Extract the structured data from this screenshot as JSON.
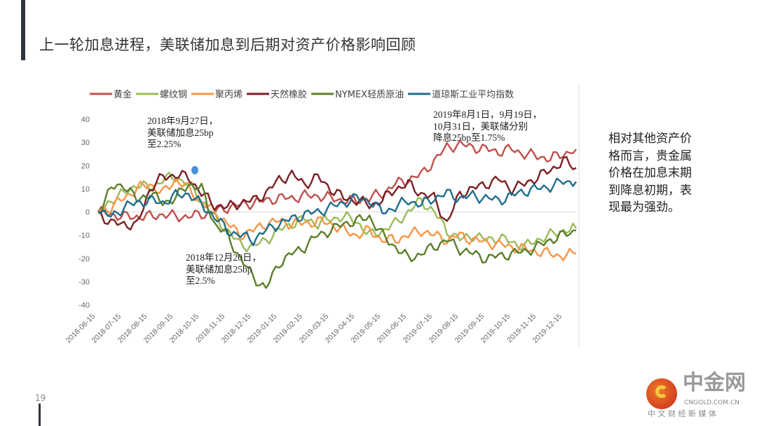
{
  "title": "上一轮加息进程，美联储加息到后期对资产价格影响回顾",
  "side_text": [
    "相对其他资产价",
    "格而言，贵金属",
    "价格在加息末期",
    "到降息初期，表",
    "现最为强劲。"
  ],
  "page_number": "19",
  "logo": {
    "name": "中金网",
    "url": "CNGOLD.COM.CN",
    "tagline": "中 文 财 经 新 媒 体"
  },
  "annotations": [
    {
      "lines": [
        "2018年9月27日，",
        "美联储加息25bp",
        "至2.25%"
      ]
    },
    {
      "lines": [
        "2018年12月20日，",
        "美联储加息25bp",
        "至2.5%"
      ]
    },
    {
      "lines": [
        "2019年8月1日，9月19日，",
        "10月31日，美联储分别",
        "降息25bp至1.75%"
      ]
    }
  ],
  "chart_data": {
    "type": "line",
    "title": "",
    "xlabel": "",
    "ylabel": "",
    "ylim": [
      -40,
      40
    ],
    "yticks": [
      40,
      30,
      20,
      10,
      0,
      -10,
      -20,
      -30,
      -40
    ],
    "xtick_labels": [
      "2018-06-15",
      "2018-07-15",
      "2018-08-15",
      "2018-09-15",
      "2018-10-15",
      "2018-11-15",
      "2018-12-15",
      "2019-01-15",
      "2019-02-15",
      "2019-03-15",
      "2019-04-15",
      "2019-05-15",
      "2019-06-15",
      "2019-07-15",
      "2019-08-15",
      "2019-09-15",
      "2019-10-15",
      "2019-11-15",
      "2019-12-15"
    ],
    "x_note": "semi-monthly samples from 2018-06-15 to 2019-12-31",
    "legend_position": "top",
    "series": [
      {
        "name": "黄金",
        "color": "#c0504d",
        "values": [
          0,
          -1,
          -2,
          -2,
          -2,
          -1,
          -2,
          -2,
          -1,
          0,
          2,
          3,
          4,
          5,
          6,
          6,
          7,
          7,
          6,
          5,
          5,
          6,
          8,
          12,
          14,
          16,
          22,
          28,
          29,
          28,
          27,
          26,
          27,
          25,
          24,
          23,
          25,
          27
        ]
      },
      {
        "name": "螺纹钢",
        "color": "#9bbb59",
        "values": [
          0,
          5,
          8,
          12,
          10,
          14,
          15,
          12,
          5,
          -2,
          -8,
          -14,
          -15,
          -12,
          -8,
          -5,
          -3,
          -5,
          -3,
          -2,
          -4,
          -10,
          -8,
          -5,
          0,
          5,
          0,
          -8,
          -12,
          -10,
          -12,
          -11,
          -13,
          -15,
          -12,
          -10,
          -8,
          -7
        ]
      },
      {
        "name": "聚丙烯",
        "color": "#f79646",
        "values": [
          0,
          2,
          6,
          10,
          12,
          8,
          14,
          10,
          4,
          0,
          -5,
          -10,
          -8,
          -5,
          -4,
          -5,
          -5,
          -4,
          -5,
          -8,
          -10,
          -8,
          -12,
          -12,
          -10,
          -8,
          -10,
          -12,
          -10,
          -12,
          -13,
          -14,
          -15,
          -16,
          -17,
          -18,
          -19,
          -18
        ]
      },
      {
        "name": "天然橡胶",
        "color": "#7b1f24",
        "values": [
          0,
          -5,
          -5,
          -6,
          10,
          15,
          16,
          15,
          8,
          3,
          2,
          4,
          5,
          8,
          14,
          16,
          12,
          15,
          10,
          6,
          5,
          3,
          5,
          10,
          12,
          8,
          6,
          -5,
          8,
          10,
          12,
          14,
          10,
          12,
          15,
          18,
          22,
          19
        ]
      },
      {
        "name": "NYMEX轻质原油",
        "color": "#5b7f2a",
        "values": [
          0,
          10,
          12,
          5,
          8,
          4,
          6,
          12,
          10,
          -5,
          -10,
          -20,
          -28,
          -33,
          -22,
          -18,
          -15,
          -10,
          -8,
          -5,
          -4,
          -2,
          -10,
          -15,
          -20,
          -18,
          -15,
          -12,
          -16,
          -18,
          -20,
          -19,
          -18,
          -17,
          -15,
          -12,
          -10,
          -8
        ]
      },
      {
        "name": "道琼斯工业平均指数",
        "color": "#1f6e8c",
        "values": [
          0,
          -2,
          2,
          4,
          5,
          4,
          7,
          8,
          3,
          -2,
          -8,
          -10,
          -12,
          -8,
          -5,
          -3,
          -1,
          0,
          2,
          4,
          6,
          5,
          0,
          2,
          5,
          3,
          6,
          8,
          6,
          7,
          6,
          5,
          7,
          9,
          10,
          11,
          13,
          13
        ]
      }
    ],
    "marker": {
      "label_index": 0,
      "x_index": 7,
      "value": 18,
      "color": "#4a90d9"
    }
  }
}
